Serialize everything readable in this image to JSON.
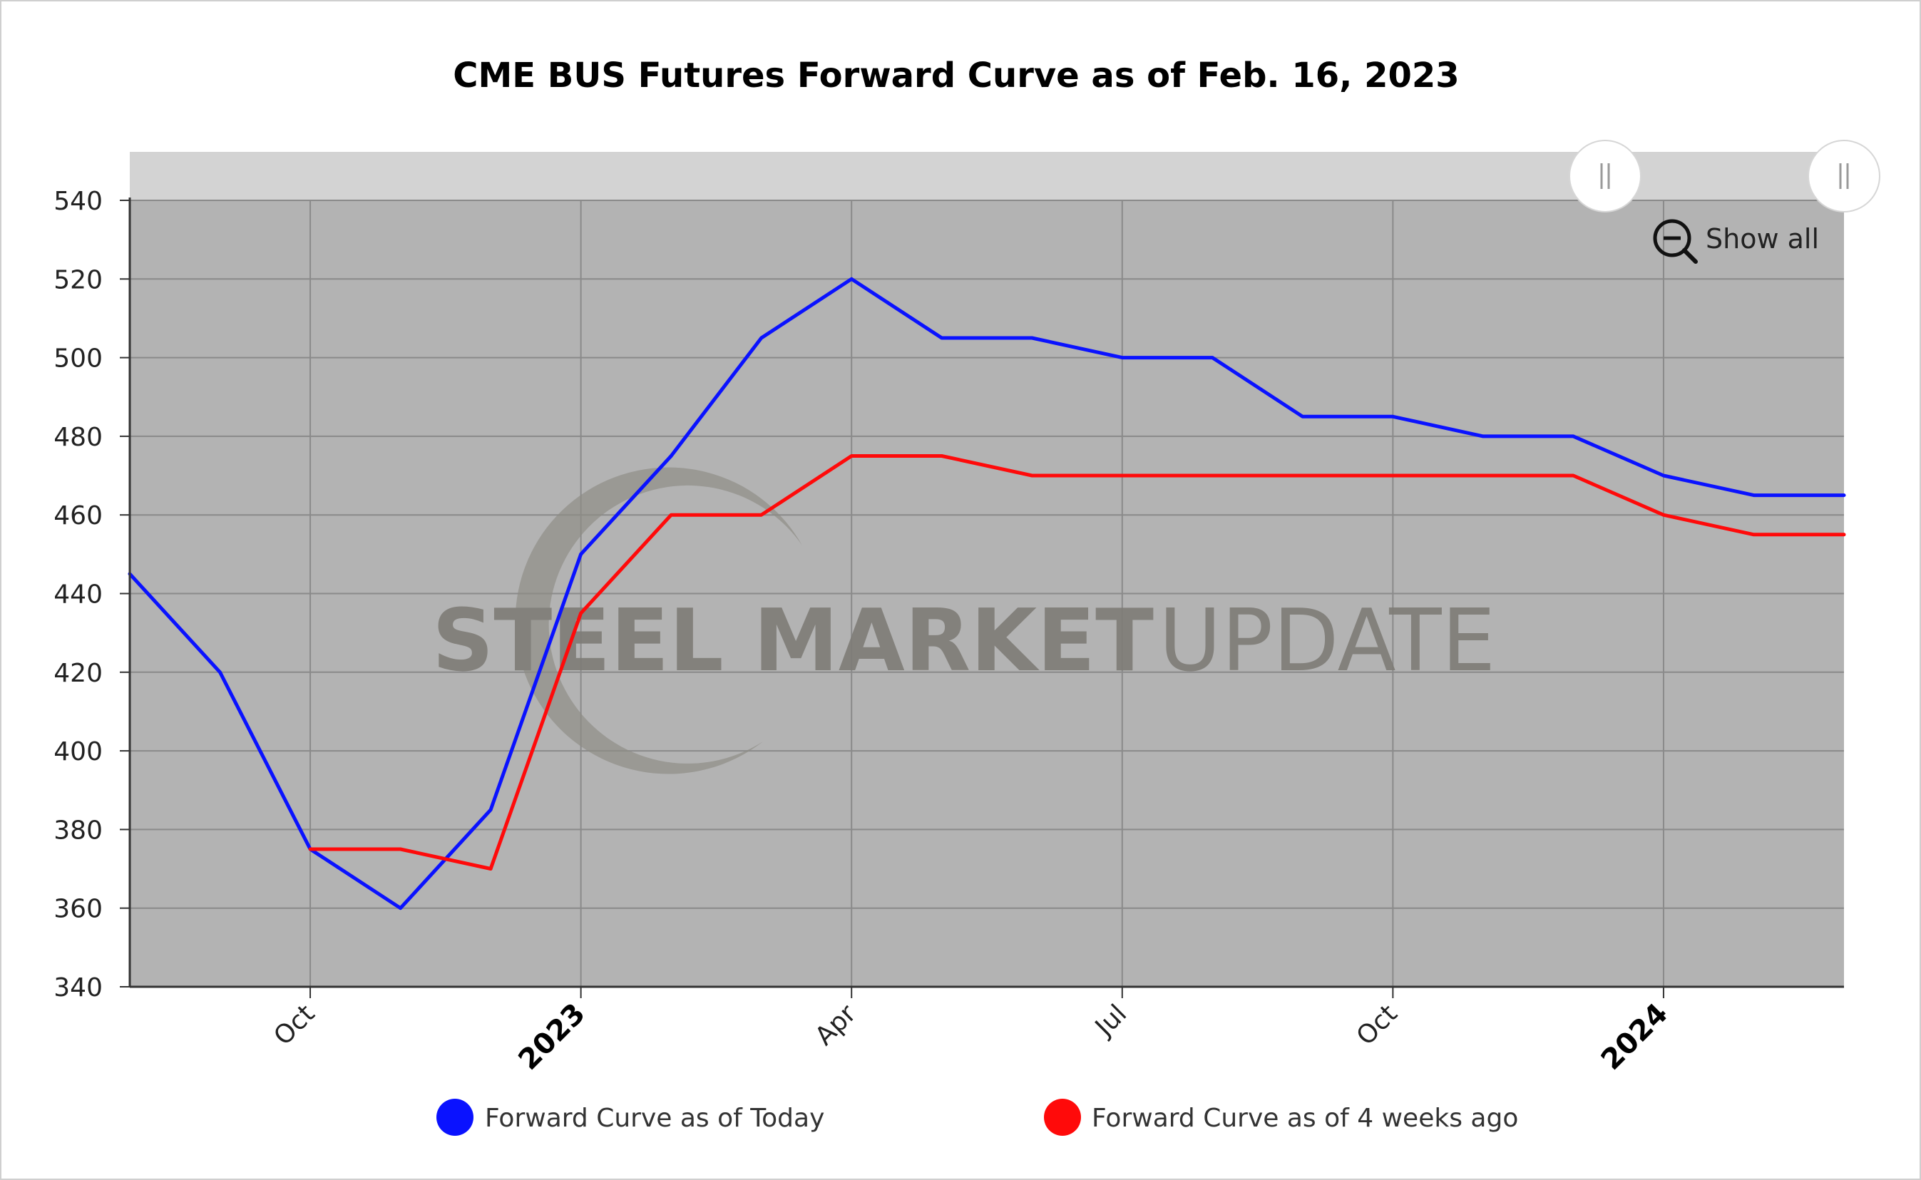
{
  "chart_data": {
    "type": "line",
    "title": "CME BUS Futures Forward Curve as of Feb. 16, 2023",
    "ylim": [
      340,
      540
    ],
    "yticks": [
      340,
      360,
      380,
      400,
      420,
      440,
      460,
      480,
      500,
      520,
      540
    ],
    "xlim": [
      "2022-08",
      "2024-03"
    ],
    "xticks": [
      {
        "label": "Oct",
        "at": "2022-10",
        "major": false
      },
      {
        "label": "2023",
        "at": "2023-01",
        "major": true
      },
      {
        "label": "Apr",
        "at": "2023-04",
        "major": false
      },
      {
        "label": "Jul",
        "at": "2023-07",
        "major": false
      },
      {
        "label": "Oct",
        "at": "2023-10",
        "major": false
      },
      {
        "label": "2024",
        "at": "2024-01",
        "major": true
      }
    ],
    "grid": true,
    "legend_position": "bottom",
    "series": [
      {
        "name": "Forward Curve as of Today",
        "color": "#0a12ff",
        "x": [
          "2022-08",
          "2022-09",
          "2022-10",
          "2022-11",
          "2022-12",
          "2023-01",
          "2023-02",
          "2023-03",
          "2023-04",
          "2023-05",
          "2023-06",
          "2023-07",
          "2023-08",
          "2023-09",
          "2023-10",
          "2023-11",
          "2023-12",
          "2024-01",
          "2024-02",
          "2024-03"
        ],
        "values": [
          445,
          420,
          375,
          360,
          385,
          450,
          475,
          505,
          520,
          505,
          505,
          500,
          500,
          485,
          485,
          480,
          480,
          470,
          465,
          465
        ]
      },
      {
        "name": "Forward Curve as of 4 weeks ago",
        "color": "#ff0a0a",
        "x": [
          "2022-10",
          "2022-11",
          "2022-12",
          "2023-01",
          "2023-02",
          "2023-03",
          "2023-04",
          "2023-05",
          "2023-06",
          "2023-07",
          "2023-08",
          "2023-09",
          "2023-10",
          "2023-11",
          "2023-12",
          "2024-01",
          "2024-02",
          "2024-03"
        ],
        "values": [
          375,
          375,
          370,
          435,
          460,
          460,
          475,
          475,
          470,
          470,
          470,
          470,
          470,
          470,
          470,
          460,
          455,
          455
        ]
      }
    ]
  },
  "controls": {
    "show_all_label": "Show all",
    "zoom_out_icon": "zoom-out-icon",
    "scrollbar_handle_icon": "scrollbar-grip-icon"
  },
  "watermark": {
    "bold": "STEEL MARKET",
    "light": "UPDATE"
  },
  "colors": {
    "plot_background": "#b3b3b3",
    "scrollbar_track": "#d3d3d3",
    "grid": "#8a8a8a"
  }
}
